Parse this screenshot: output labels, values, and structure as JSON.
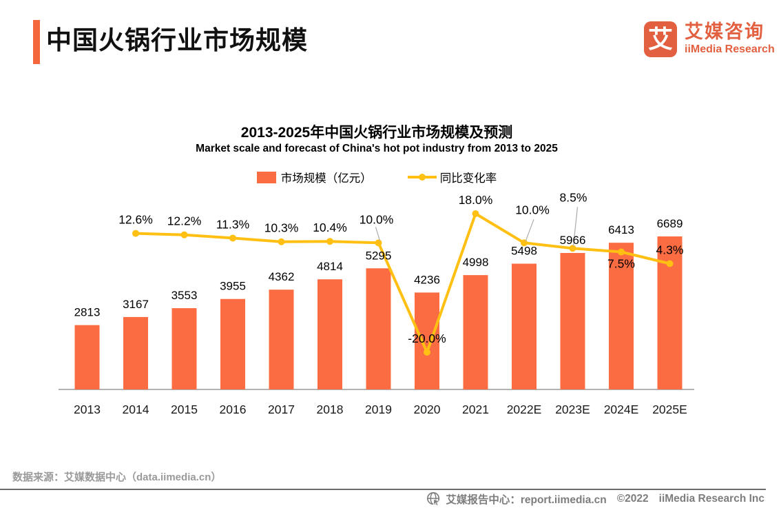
{
  "header": {
    "title": "中国火锅行业市场规模",
    "logo": {
      "mark": "艾",
      "name_cn": "艾媒咨询",
      "name_en": "iiMedia Research"
    }
  },
  "colors": {
    "accent": "#F4663C",
    "bar": "#FB6C42",
    "line": "#FFC013",
    "logo": "#E2603F",
    "axis_baseline": "#999999",
    "leader_line": "#ABABAB"
  },
  "chart_data": {
    "type": "bar+line",
    "title": "2013-2025年中国火锅行业市场规模及预测",
    "subtitle": "Market scale and forecast of China's hot pot industry from 2013 to 2025",
    "categories": [
      "2013",
      "2014",
      "2015",
      "2016",
      "2017",
      "2018",
      "2019",
      "2020",
      "2021",
      "2022E",
      "2023E",
      "2024E",
      "2025E"
    ],
    "series": [
      {
        "name": "市场规模（亿元）",
        "type": "bar",
        "unit": "亿元",
        "color": "#FB6C42",
        "values": [
          2813,
          3167,
          3553,
          3955,
          4362,
          4814,
          5295,
          4236,
          4998,
          5498,
          5966,
          6413,
          6689
        ]
      },
      {
        "name": "同比变化率",
        "type": "line",
        "unit": "%",
        "color": "#FFC013",
        "values": [
          null,
          12.6,
          12.2,
          11.3,
          10.3,
          10.4,
          10.0,
          -20.0,
          18.0,
          10.0,
          8.5,
          7.5,
          4.3
        ]
      }
    ],
    "legend_position": "top",
    "grid": false,
    "y_left_range": [
      0,
      7400
    ],
    "y_right_range_percent": [
      -25,
      20
    ],
    "axis_labels_visible": "x-only",
    "all_points_labeled": true
  },
  "footer": {
    "source": "数据来源：艾媒数据中心（data.iimedia.cn）",
    "report_center": "艾媒报告中心：report.iimedia.cn",
    "copyright": "©2022",
    "company": "iiMedia Research Inc"
  }
}
